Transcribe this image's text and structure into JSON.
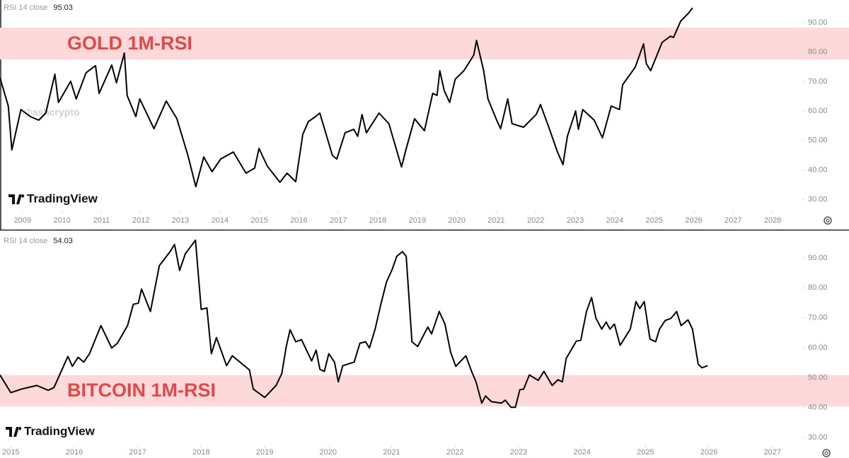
{
  "chart_data": [
    {
      "type": "line",
      "title": "GOLD 1M-RSI",
      "watermark": "TradingView",
      "handle": "@ashcrypto",
      "x": [
        2008.43,
        2008.64,
        2008.73,
        2008.96,
        2009.2,
        2009.41,
        2009.59,
        2009.82,
        2009.91,
        2010.22,
        2010.36,
        2010.61,
        2010.85,
        2010.94,
        2011.26,
        2011.38,
        2011.58,
        2011.65,
        2011.87,
        2011.97,
        2012.33,
        2012.64,
        2012.91,
        2013.19,
        2013.39,
        2013.59,
        2013.8,
        2014.02,
        2014.34,
        2014.66,
        2014.88,
        2014.99,
        2015.2,
        2015.52,
        2015.7,
        2015.92,
        2016.1,
        2016.24,
        2016.42,
        2016.53,
        2016.85,
        2016.96,
        2017.17,
        2017.39,
        2017.49,
        2017.6,
        2017.71,
        2018.03,
        2018.28,
        2018.6,
        2018.71,
        2018.93,
        2019.18,
        2019.39,
        2019.5,
        2019.57,
        2019.68,
        2019.82,
        2019.96,
        2020.18,
        2020.43,
        2020.5,
        2020.68,
        2020.79,
        2021.01,
        2021.11,
        2021.29,
        2021.4,
        2021.69,
        2022.01,
        2022.12,
        2022.33,
        2022.55,
        2022.69,
        2022.8,
        2023.01,
        2023.08,
        2023.19,
        2023.48,
        2023.69,
        2023.91,
        2024.12,
        2024.2,
        2024.52,
        2024.73,
        2024.8,
        2024.91,
        2025.2,
        2025.41,
        2025.49,
        2025.67,
        2025.88,
        2025.97
      ],
      "series": [
        {
          "name": "RSI 14 close",
          "color": "#000000",
          "values": [
            71.3,
            61.7,
            46.8,
            60.5,
            58.1,
            56.9,
            59.3,
            72.5,
            62.9,
            70.1,
            64.1,
            73.0,
            75.4,
            66.0,
            75.6,
            69.6,
            79.7,
            65.3,
            58.1,
            64.1,
            54.0,
            63.4,
            57.4,
            44.9,
            34.3,
            44.4,
            39.4,
            43.7,
            46.1,
            38.9,
            40.6,
            47.3,
            41.3,
            35.8,
            38.9,
            36.0,
            52.1,
            56.4,
            58.1,
            59.3,
            44.9,
            43.7,
            52.6,
            53.8,
            51.4,
            58.8,
            52.6,
            59.3,
            55.7,
            41.0,
            46.8,
            57.4,
            53.3,
            66.0,
            65.3,
            73.7,
            67.0,
            62.9,
            70.8,
            73.7,
            79.0,
            84.0,
            73.7,
            64.1,
            56.9,
            54.0,
            64.1,
            55.7,
            54.5,
            58.8,
            62.2,
            54.5,
            46.1,
            41.8,
            51.4,
            60.0,
            53.8,
            60.5,
            56.9,
            50.9,
            61.7,
            60.5,
            68.9,
            74.9,
            82.8,
            76.1,
            73.7,
            83.3,
            85.4,
            85.0,
            90.5,
            93.4,
            95.03
          ]
        }
      ],
      "band": [
        77.5,
        88.3
      ],
      "band_color": "#fdd9d9",
      "xlim": [
        2008.43,
        2028.59
      ],
      "xticks": [
        2009,
        2010,
        2011,
        2012,
        2013,
        2014,
        2015,
        2016,
        2017,
        2018,
        2019,
        2020,
        2021,
        2022,
        2023,
        2024,
        2025,
        2026,
        2027,
        2028
      ],
      "ylim": [
        26.9,
        97.7
      ],
      "yticks": [
        {
          "value": 30,
          "label": "30.00"
        },
        {
          "value": 40,
          "label": "40.00"
        },
        {
          "value": 50,
          "label": "50.00"
        },
        {
          "value": 60,
          "label": "60.00"
        },
        {
          "value": 70,
          "label": "70.00"
        },
        {
          "value": 80,
          "label": "80.00"
        },
        {
          "value": 90,
          "label": "90.00"
        }
      ],
      "grid": false
    },
    {
      "type": "line",
      "title": "BITCOIN 1M-RSI",
      "watermark": "TradingView",
      "x": [
        2014.83,
        2015.0,
        2015.17,
        2015.41,
        2015.59,
        2015.68,
        2015.9,
        2015.97,
        2016.06,
        2016.15,
        2016.24,
        2016.42,
        2016.59,
        2016.68,
        2016.84,
        2016.93,
        2017.01,
        2017.06,
        2017.2,
        2017.34,
        2017.51,
        2017.58,
        2017.66,
        2017.75,
        2017.91,
        2018.0,
        2018.09,
        2018.16,
        2018.24,
        2018.4,
        2018.49,
        2018.76,
        2018.82,
        2019.0,
        2019.18,
        2019.27,
        2019.34,
        2019.4,
        2019.49,
        2019.58,
        2019.74,
        2019.81,
        2019.87,
        2019.94,
        2020.01,
        2020.1,
        2020.16,
        2020.23,
        2020.41,
        2020.5,
        2020.59,
        2020.65,
        2020.74,
        2020.83,
        2020.92,
        2021.01,
        2021.08,
        2021.17,
        2021.23,
        2021.32,
        2021.41,
        2021.57,
        2021.63,
        2021.75,
        2021.84,
        2021.93,
        2022.01,
        2022.17,
        2022.26,
        2022.33,
        2022.42,
        2022.48,
        2022.57,
        2022.73,
        2022.79,
        2022.88,
        2022.95,
        2023.02,
        2023.08,
        2023.17,
        2023.31,
        2023.4,
        2023.53,
        2023.62,
        2023.69,
        2023.75,
        2023.91,
        2023.98,
        2024.07,
        2024.15,
        2024.22,
        2024.31,
        2024.38,
        2024.44,
        2024.51,
        2024.6,
        2024.76,
        2024.85,
        2024.91,
        2024.98,
        2025.07,
        2025.16,
        2025.22,
        2025.31,
        2025.4,
        2025.49,
        2025.56,
        2025.67,
        2025.74,
        2025.83,
        2025.89,
        2025.98
      ],
      "series": [
        {
          "name": "RSI 14 close",
          "color": "#000000",
          "values": [
            50.9,
            45.0,
            46.2,
            47.4,
            45.8,
            46.7,
            57.1,
            53.8,
            56.8,
            55.2,
            58.0,
            67.4,
            59.9,
            61.5,
            67.4,
            74.5,
            74.9,
            79.6,
            72.1,
            87.4,
            92.1,
            94.5,
            85.8,
            91.4,
            95.9,
            72.8,
            73.3,
            58.0,
            63.4,
            54.0,
            57.3,
            52.6,
            46.2,
            43.4,
            47.4,
            51.4,
            60.4,
            66.0,
            62.0,
            62.7,
            55.6,
            59.2,
            52.8,
            52.1,
            58.0,
            55.2,
            48.6,
            54.0,
            55.2,
            61.5,
            62.0,
            59.9,
            66.2,
            74.5,
            82.0,
            86.2,
            90.5,
            92.1,
            90.5,
            62.0,
            60.4,
            66.9,
            64.6,
            72.1,
            67.9,
            58.5,
            53.8,
            57.3,
            52.1,
            48.6,
            41.5,
            43.9,
            42.0,
            41.5,
            42.5,
            40.1,
            40.1,
            46.0,
            46.2,
            50.9,
            49.1,
            52.1,
            47.4,
            49.3,
            48.6,
            56.4,
            62.2,
            62.5,
            72.1,
            76.8,
            69.8,
            66.2,
            68.6,
            66.2,
            67.9,
            60.8,
            66.2,
            75.4,
            73.1,
            75.4,
            62.9,
            62.0,
            66.2,
            69.1,
            69.8,
            72.1,
            67.4,
            69.3,
            66.2,
            54.5,
            53.3,
            54.03
          ]
        }
      ],
      "band": [
        40.4,
        50.9
      ],
      "band_color": "#fdd9d9",
      "xlim": [
        2014.83,
        2027.37
      ],
      "xticks": [
        2015,
        2016,
        2017,
        2018,
        2019,
        2020,
        2021,
        2022,
        2023,
        2024,
        2025,
        2026,
        2027
      ],
      "ylim": [
        27.9,
        98.7
      ],
      "yticks": [
        {
          "value": 30,
          "label": "30.00"
        },
        {
          "value": 40,
          "label": "40.00"
        },
        {
          "value": 50,
          "label": "50.00"
        },
        {
          "value": 60,
          "label": "60.00"
        },
        {
          "value": 70,
          "label": "70.00"
        },
        {
          "value": 80,
          "label": "80.00"
        },
        {
          "value": 90,
          "label": "90.00"
        }
      ],
      "grid": false
    }
  ]
}
